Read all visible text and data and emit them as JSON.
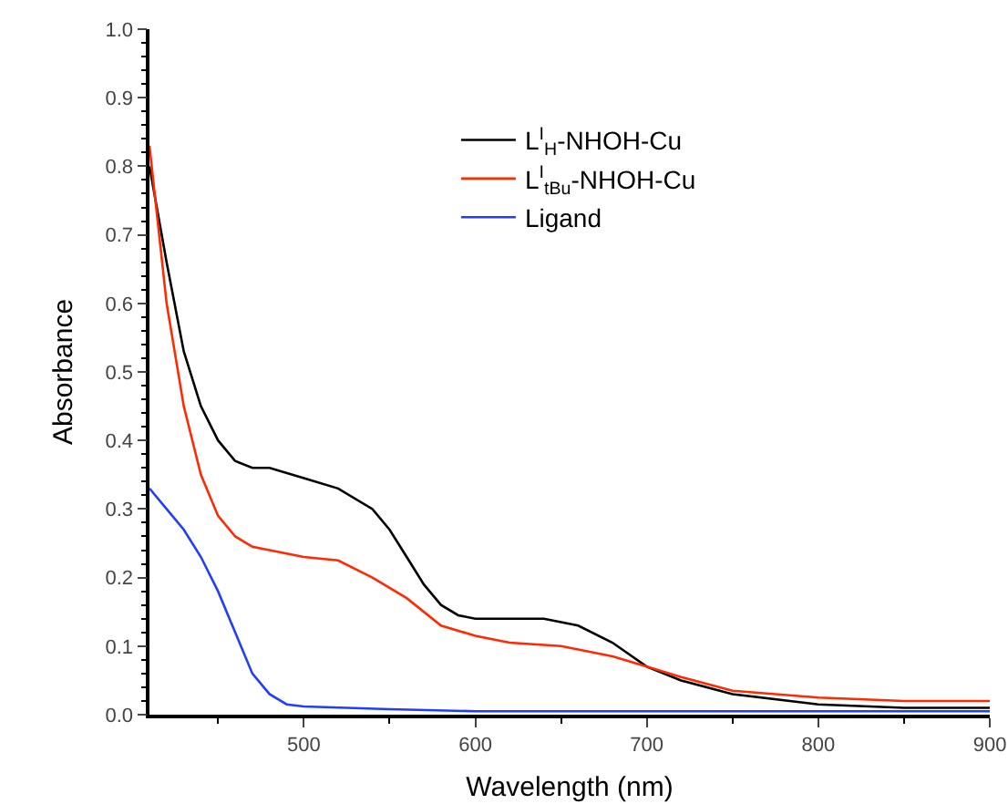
{
  "chart_data": {
    "type": "line",
    "xlabel": "Wavelength (nm)",
    "ylabel": "Absorbance",
    "xlim": [
      410,
      900
    ],
    "xticks": [
      500,
      600,
      700,
      800,
      900
    ],
    "ylim": [
      0,
      1
    ],
    "yticks": [
      {
        "value": 0,
        "label": "0.0"
      },
      0.1,
      0.2,
      0.3,
      0.4,
      0.5,
      0.6,
      0.7,
      0.8,
      0.9,
      {
        "value": 1,
        "label": "1.0"
      }
    ],
    "grid": false,
    "legend": "top right",
    "line_style": "solid",
    "marker": "none",
    "series": [
      {
        "name": "L$^{I}$$_{H}$-NHOH-Cu",
        "color": "#000000",
        "x": [
          410,
          420,
          430,
          440,
          450,
          460,
          470,
          480,
          500,
          520,
          540,
          550,
          560,
          570,
          580,
          590,
          600,
          620,
          640,
          660,
          680,
          700,
          720,
          750,
          800,
          850,
          900
        ],
        "values": [
          0.8,
          0.66,
          0.53,
          0.45,
          0.4,
          0.37,
          0.36,
          0.36,
          0.345,
          0.33,
          0.3,
          0.27,
          0.23,
          0.19,
          0.16,
          0.145,
          0.14,
          0.14,
          0.14,
          0.13,
          0.105,
          0.07,
          0.05,
          0.03,
          0.015,
          0.01,
          0.01
        ]
      },
      {
        "name": "L$^{I}$$_{tBu}$-NHOH-Cu",
        "color": "#ff2a00",
        "x": [
          410,
          420,
          430,
          440,
          450,
          460,
          470,
          480,
          500,
          520,
          540,
          560,
          580,
          600,
          620,
          650,
          680,
          700,
          720,
          750,
          800,
          850,
          900
        ],
        "values": [
          0.83,
          0.6,
          0.45,
          0.35,
          0.29,
          0.26,
          0.245,
          0.24,
          0.23,
          0.225,
          0.2,
          0.17,
          0.13,
          0.115,
          0.105,
          0.1,
          0.085,
          0.07,
          0.055,
          0.035,
          0.025,
          0.02,
          0.02
        ]
      },
      {
        "name": "Ligand",
        "color": "#1f3fff",
        "x": [
          410,
          420,
          430,
          440,
          450,
          460,
          470,
          480,
          490,
          500,
          550,
          600,
          700,
          800,
          900
        ],
        "values": [
          0.33,
          0.3,
          0.27,
          0.23,
          0.18,
          0.12,
          0.06,
          0.03,
          0.015,
          0.012,
          0.008,
          0.005,
          0.005,
          0.005,
          0.005
        ]
      }
    ]
  }
}
